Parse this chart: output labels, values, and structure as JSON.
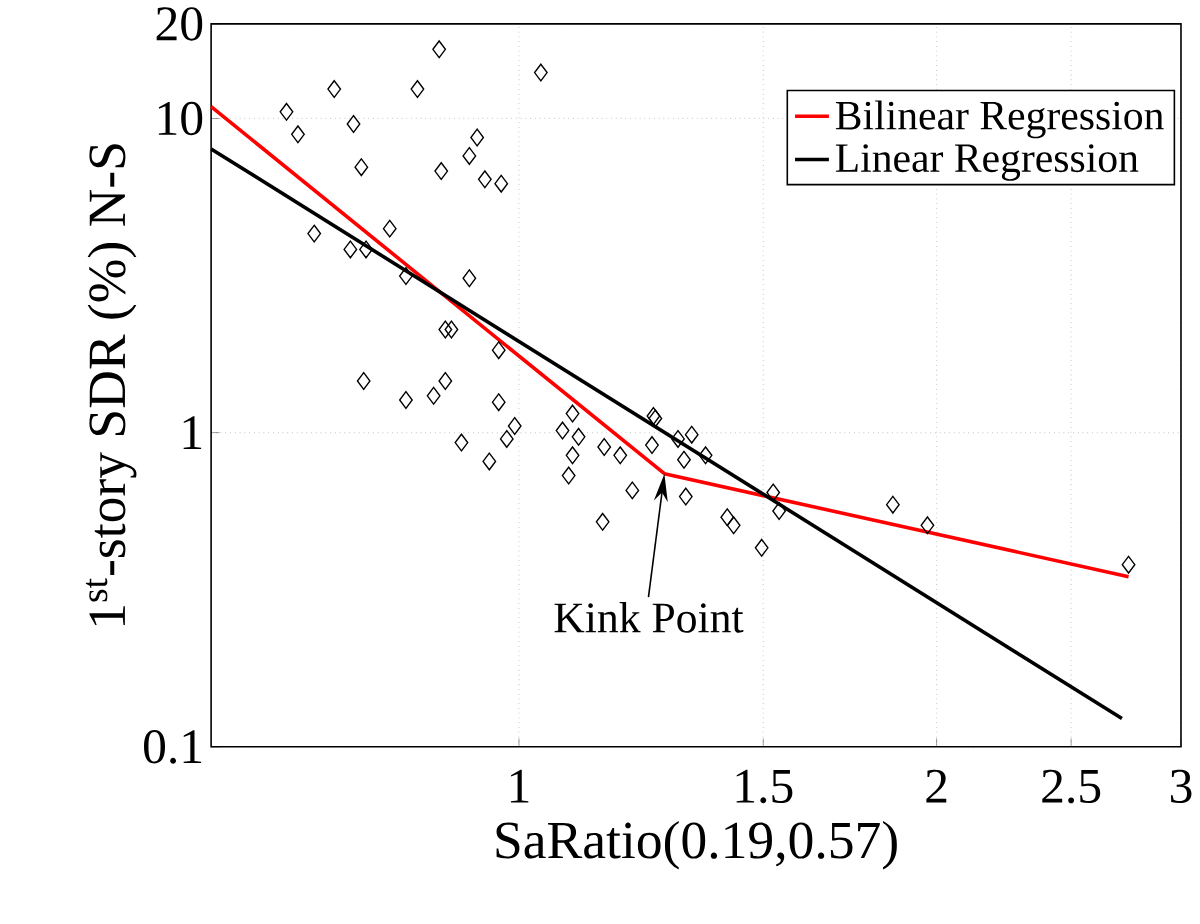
{
  "chart_data": {
    "type": "scatter",
    "xlabel": "SaRatio(0.19,0.57)",
    "ylabel": "1$^{st}$-story SDR (%) N-S",
    "log": "xy",
    "grid": true,
    "legend": "top right",
    "marker": "diamond",
    "xlim": [
      0.6,
      3
    ],
    "ylim": [
      0.1,
      20
    ],
    "xticks": [
      1,
      1.5,
      2,
      2.5,
      3
    ],
    "yticks": [
      0.1,
      1,
      10,
      20
    ],
    "annotations": [
      {
        "text": "Kink Point",
        "x": 1.273,
        "y": 0.74
      }
    ],
    "series": [
      {
        "color": "#000000",
        "x": [
          0.68,
          0.693,
          0.736,
          0.76,
          0.77,
          0.712,
          0.807,
          0.845,
          0.876,
          0.879,
          0.921,
          0.933,
          0.945,
          0.971,
          1.037,
          0.756,
          0.776,
          0.829,
          0.921,
          0.885,
          0.894,
          0.967,
          0.773,
          0.829,
          0.868,
          0.885,
          0.967,
          1.093,
          1.25,
          0.909,
          0.952,
          0.98,
          0.993,
          1.075,
          1.104,
          1.093,
          1.086,
          1.152,
          1.183,
          1.207,
          1.149,
          1.254,
          1.247,
          1.302,
          1.332,
          1.315,
          1.363,
          1.319,
          1.413,
          1.428,
          1.496,
          1.525,
          1.54,
          1.86,
          1.97,
          2.75
        ],
        "values": [
          10.5,
          8.9,
          12.4,
          9.6,
          7.0,
          4.3,
          4.46,
          12.4,
          16.6,
          6.8,
          7.6,
          8.7,
          6.4,
          6.2,
          14.0,
          3.83,
          3.83,
          3.15,
          3.1,
          2.13,
          2.13,
          1.83,
          1.46,
          1.27,
          1.31,
          1.46,
          1.25,
          1.15,
          1.13,
          0.93,
          0.81,
          0.955,
          1.05,
          1.015,
          0.97,
          0.847,
          0.73,
          0.9,
          0.847,
          0.655,
          0.52,
          1.11,
          0.913,
          0.955,
          0.985,
          0.82,
          0.847,
          0.626,
          0.538,
          0.507,
          0.43,
          0.645,
          0.563,
          0.59,
          0.507,
          0.38
        ]
      },
      {
        "type": "line",
        "marker": "none",
        "name": "Bilinear Regression",
        "color": "#ff0000",
        "x": [
          0.6,
          1.273,
          2.75
        ],
        "values": [
          10.9,
          0.74,
          0.348
        ]
      },
      {
        "type": "line",
        "marker": "none",
        "name": "Linear Regression",
        "color": "#000000",
        "x": [
          0.6,
          2.72
        ],
        "values": [
          8.0,
          0.123
        ]
      }
    ]
  }
}
